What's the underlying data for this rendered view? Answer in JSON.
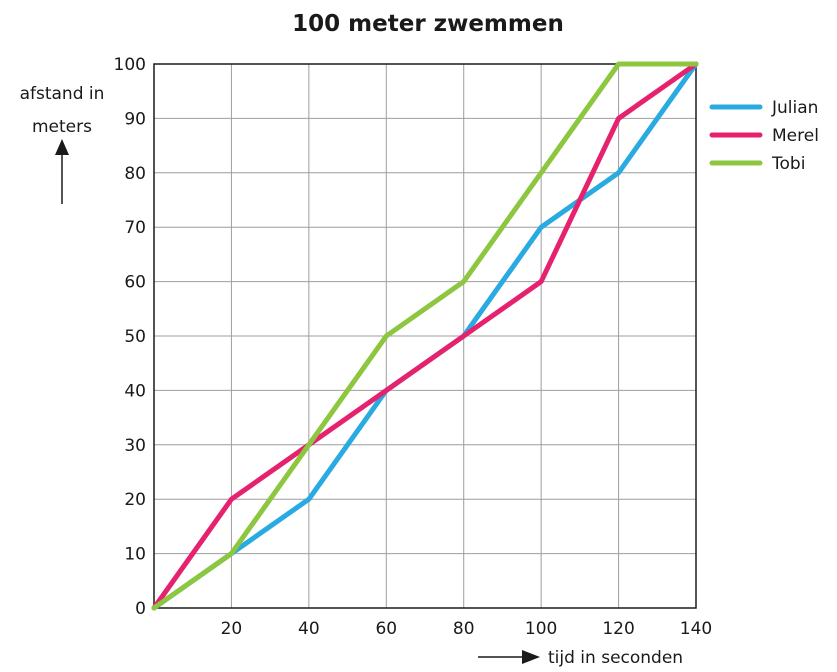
{
  "chart_data": {
    "type": "line",
    "title": "100 meter zwemmen",
    "ylabel_line1": "afstand in",
    "ylabel_line2": "meters",
    "xlabel": "tijd in seconden",
    "x": [
      0,
      20,
      40,
      60,
      80,
      100,
      120,
      140
    ],
    "xlim": [
      0,
      140
    ],
    "ylim": [
      0,
      100
    ],
    "xticks": [
      20,
      40,
      60,
      80,
      100,
      120,
      140
    ],
    "yticks": [
      0,
      10,
      20,
      30,
      40,
      50,
      60,
      70,
      80,
      90,
      100
    ],
    "grid": true,
    "legend_position": "right",
    "series": [
      {
        "name": "Julian",
        "color": "#29abe2",
        "values": [
          0,
          10,
          20,
          40,
          50,
          70,
          80,
          100
        ]
      },
      {
        "name": "Merel",
        "color": "#e6226e",
        "values": [
          0,
          20,
          30,
          40,
          50,
          60,
          90,
          100
        ]
      },
      {
        "name": "Tobi",
        "color": "#8dc63f",
        "values": [
          0,
          10,
          30,
          50,
          60,
          80,
          100,
          100
        ]
      }
    ]
  }
}
